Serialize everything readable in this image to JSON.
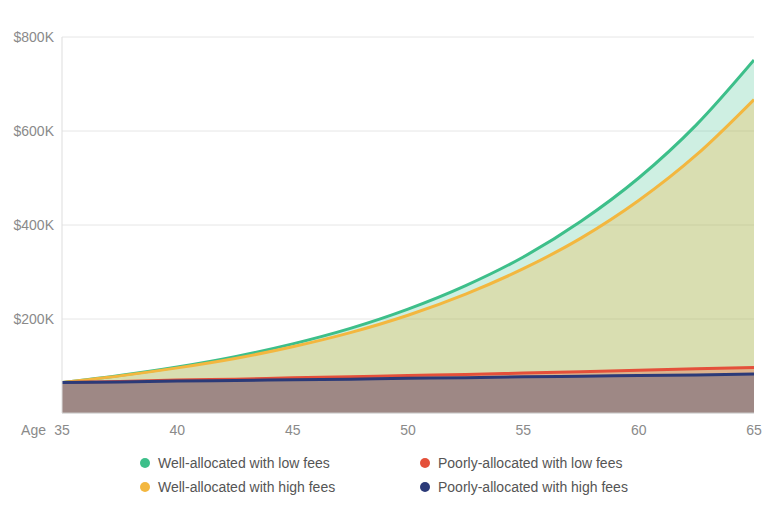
{
  "chart_data": {
    "type": "area",
    "x_label": "Age",
    "x": [
      35,
      37.5,
      40,
      42.5,
      45,
      47.5,
      50,
      52.5,
      55,
      57.5,
      60,
      62.5,
      65
    ],
    "xlim": [
      35,
      65
    ],
    "xticks": [
      35,
      40,
      45,
      50,
      55,
      60,
      65
    ],
    "ylim": [
      0,
      800000
    ],
    "yticks": [
      {
        "value": 200000,
        "label": "$200K"
      },
      {
        "value": 400000,
        "label": "$400K"
      },
      {
        "value": 600000,
        "label": "$600K"
      },
      {
        "value": 800000,
        "label": "$800K"
      }
    ],
    "grid": true,
    "legend": "bottom",
    "series": [
      {
        "name": "Well-allocated with low fees",
        "color": "#3dbf8a",
        "values": [
          65000,
          80000,
          98000,
          120000,
          147000,
          180000,
          221000,
          271000,
          332000,
          408000,
          500000,
          613000,
          751000
        ]
      },
      {
        "name": "Well-allocated with high fees",
        "color": "#f3b73f",
        "values": [
          65000,
          79000,
          96000,
          116000,
          141000,
          171000,
          208000,
          253000,
          307000,
          372000,
          452000,
          549000,
          667000
        ]
      },
      {
        "name": "Poorly-allocated with low fees",
        "color": "#e4503a",
        "values": [
          65000,
          67000,
          70000,
          72000,
          75000,
          77000,
          80000,
          82000,
          85000,
          88000,
          91000,
          94000,
          97000
        ]
      },
      {
        "name": "Poorly-allocated with high fees",
        "color": "#2b3a78",
        "values": [
          65000,
          66000,
          68000,
          69000,
          71000,
          72000,
          74000,
          75000,
          77000,
          78000,
          80000,
          81000,
          83000
        ]
      }
    ]
  }
}
